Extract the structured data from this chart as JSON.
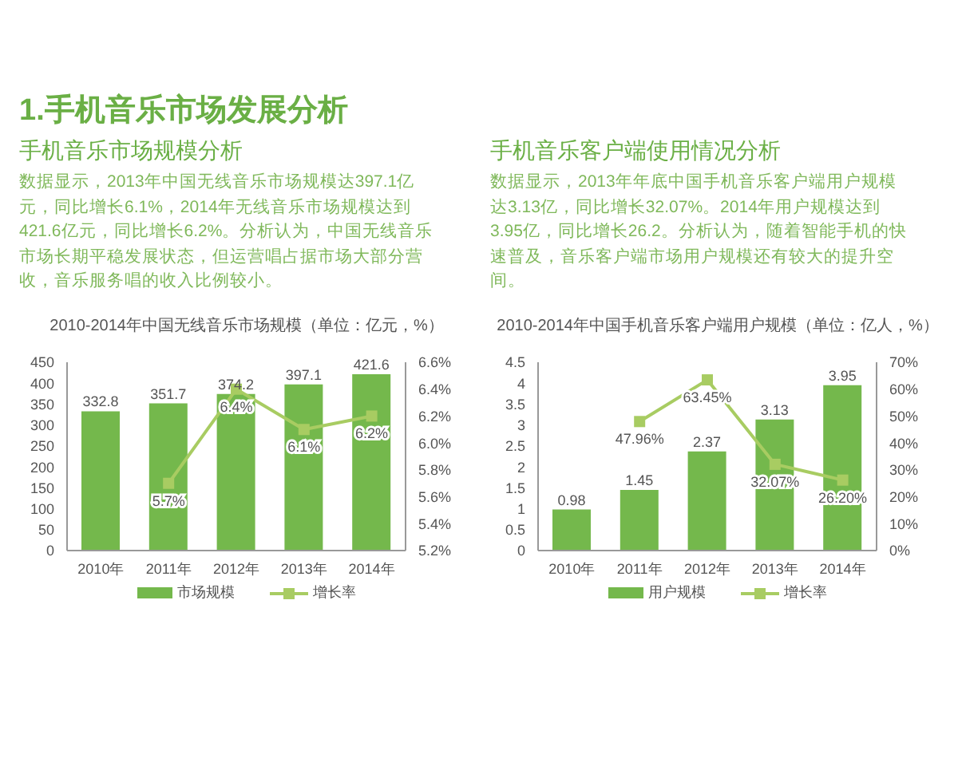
{
  "chart_data": [
    {
      "type": "bar",
      "title": "2010-2014年中国无线音乐市场规模（单位：亿元，%）",
      "subtitle": "手机音乐市场规模分析",
      "annotations": [
        "1.手机音乐市场发展分析",
        "数据显示，2013年中国无线音乐市场规模达397.1亿元，同比增长6.1%，2014年无线音乐市场规模达到421.6亿元，同比增长6.2%。分析认为，中国无线音乐市场长期平稳发展状态，但运营唱占据市场大部分营收，音乐服务唱的收入比例较小。"
      ],
      "categories": [
        "2010年",
        "2011年",
        "2012年",
        "2013年",
        "2014年"
      ],
      "series": [
        {
          "name": "市场规模",
          "color": "#74b84c",
          "values": [
            332.8,
            351.7,
            374.2,
            397.1,
            421.6
          ],
          "value_labels": [
            "332.8",
            "351.7",
            "374.2",
            "397.1",
            "421.6"
          ]
        },
        {
          "name": "增长率",
          "type": "line",
          "axis": "y2",
          "color": "#a8cc62",
          "values": [
            null,
            5.7,
            6.4,
            6.1,
            6.2
          ],
          "value_labels": [
            null,
            "5.7%",
            "6.4%",
            "6.1%",
            "6.2%"
          ]
        }
      ],
      "ylim": [
        0,
        450
      ],
      "yticks": [
        0,
        50,
        100,
        150,
        200,
        250,
        300,
        350,
        400,
        450
      ],
      "y2lim": [
        5.2,
        6.6
      ],
      "y2ticks": [
        {
          "value": 5.2,
          "label": "5.2%"
        },
        {
          "value": 5.4,
          "label": "5.4%"
        },
        {
          "value": 5.6,
          "label": "5.6%"
        },
        {
          "value": 5.8,
          "label": "5.8%"
        },
        {
          "value": 6.0,
          "label": "6.0%"
        },
        {
          "value": 6.2,
          "label": "6.2%"
        },
        {
          "value": 6.4,
          "label": "6.4%"
        },
        {
          "value": 6.6,
          "label": "6.6%"
        }
      ],
      "grid": false,
      "legend": "bottom",
      "marker": "square"
    },
    {
      "type": "bar",
      "title": "2010-2014年中国手机音乐客户端用户规模（单位：亿人，%）",
      "subtitle": "手机音乐客户端使用情况分析",
      "annotations": [
        "数据显示，2013年年底中国手机音乐客户端用户规模达3.13亿，同比增长32.07%。2014年用户规模达到3.95亿，同比增长26.2。分析认为，随着智能手机的快速普及，音乐客户端市场用户规模还有较大的提升空间。"
      ],
      "categories": [
        "2010年",
        "2011年",
        "2012年",
        "2013年",
        "2014年"
      ],
      "series": [
        {
          "name": "用户规模",
          "color": "#74b84c",
          "values": [
            0.98,
            1.45,
            2.37,
            3.13,
            3.95
          ],
          "value_labels": [
            "0.98",
            "1.45",
            "2.37",
            "3.13",
            "3.95"
          ]
        },
        {
          "name": "增长率",
          "type": "line",
          "axis": "y2",
          "color": "#a8cc62",
          "values": [
            null,
            47.96,
            63.45,
            32.07,
            26.2
          ],
          "value_labels": [
            null,
            "47.96%",
            "63.45%",
            "32.07%",
            "26.20%"
          ]
        }
      ],
      "ylim": [
        0,
        4.5
      ],
      "yticks": [
        0,
        0.5,
        1,
        1.5,
        2,
        2.5,
        3,
        3.5,
        4,
        4.5
      ],
      "y2lim": [
        0,
        70
      ],
      "y2ticks": [
        {
          "value": 0,
          "label": "0%"
        },
        {
          "value": 10,
          "label": "10%"
        },
        {
          "value": 20,
          "label": "20%"
        },
        {
          "value": 30,
          "label": "30%"
        },
        {
          "value": 40,
          "label": "40%"
        },
        {
          "value": 50,
          "label": "50%"
        },
        {
          "value": 60,
          "label": "60%"
        },
        {
          "value": 70,
          "label": "70%"
        }
      ],
      "grid": false,
      "legend": "bottom",
      "marker": "square"
    }
  ]
}
